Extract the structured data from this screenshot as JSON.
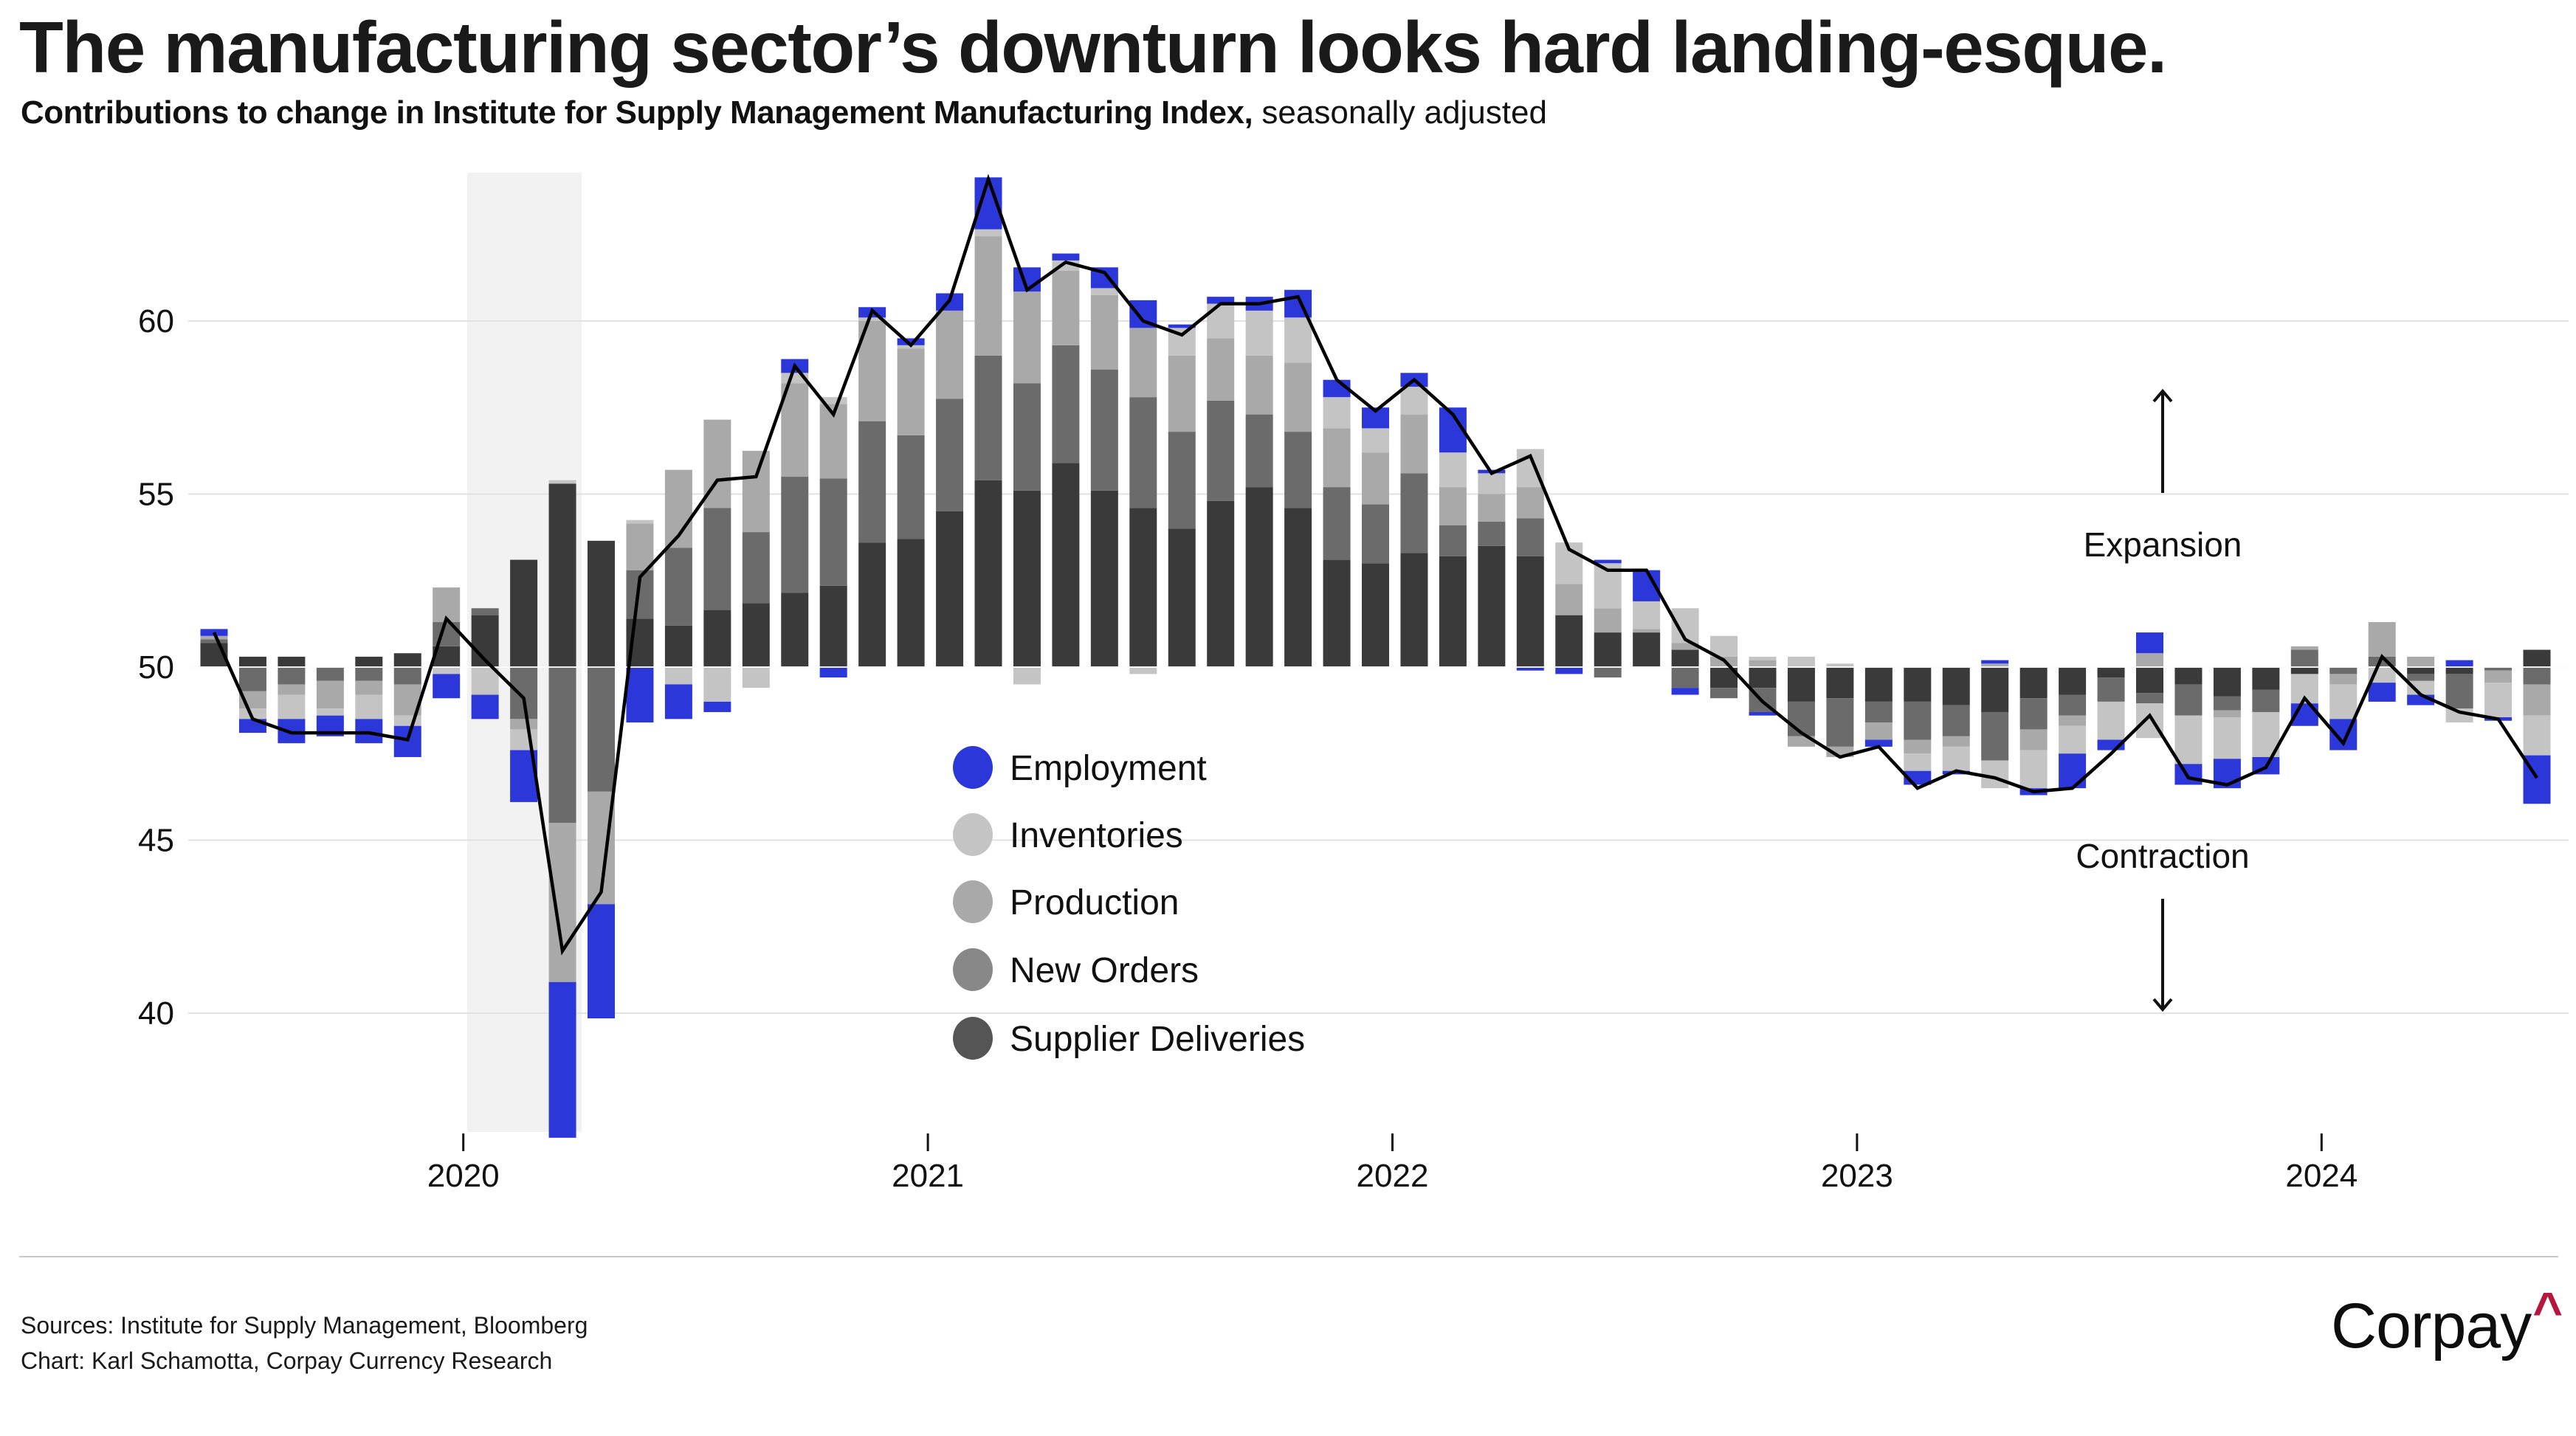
{
  "header": {
    "title": "The manufacturing sector’s downturn looks hard landing-esque.",
    "subtitle_main": "Contributions to change in Institute for Supply Management Manufacturing Index,",
    "subtitle_note": " seasonally adjusted"
  },
  "footer": {
    "sources": "Sources: Institute for Supply Management, Bloomberg",
    "credit": "Chart: Karl Schamotta, Corpay Currency Research",
    "logo_text": "Corpay",
    "logo_mark": "^",
    "logo_mark_color": "#b5173f"
  },
  "chart_data": {
    "type": "bar",
    "subtype": "stacked-bar-with-line",
    "title": "The manufacturing sector’s downturn looks hard landing-esque.",
    "subtitle": "Contributions to change in Institute for Supply Management Manufacturing Index, seasonally adjusted",
    "xlabel": "",
    "ylabel": "",
    "baseline": 50,
    "ylim": [
      36.5,
      65
    ],
    "yticks": [
      40,
      45,
      50,
      55,
      60
    ],
    "xticks": [
      {
        "label": "2020",
        "month_index": 6
      },
      {
        "label": "2021",
        "month_index": 18
      },
      {
        "label": "2022",
        "month_index": 30
      },
      {
        "label": "2023",
        "month_index": 42
      },
      {
        "label": "2024",
        "month_index": 54
      }
    ],
    "grid": true,
    "legend_position": "center-left",
    "shaded_period": {
      "label": "recession",
      "start": "2020-02",
      "end": "2020-04"
    },
    "annotations": [
      {
        "text": "Expansion",
        "direction": "up"
      },
      {
        "text": "Contraction",
        "direction": "down"
      }
    ],
    "categories": [
      "2019-07",
      "2019-08",
      "2019-09",
      "2019-10",
      "2019-11",
      "2019-12",
      "2020-01",
      "2020-02",
      "2020-03",
      "2020-04",
      "2020-05",
      "2020-06",
      "2020-07",
      "2020-08",
      "2020-09",
      "2020-10",
      "2020-11",
      "2020-12",
      "2021-01",
      "2021-02",
      "2021-03",
      "2021-04",
      "2021-05",
      "2021-06",
      "2021-07",
      "2021-08",
      "2021-09",
      "2021-10",
      "2021-11",
      "2021-12",
      "2022-01",
      "2022-02",
      "2022-03",
      "2022-04",
      "2022-05",
      "2022-06",
      "2022-07",
      "2022-08",
      "2022-09",
      "2022-10",
      "2022-11",
      "2022-12",
      "2023-01",
      "2023-02",
      "2023-03",
      "2023-04",
      "2023-05",
      "2023-06",
      "2023-07",
      "2023-08",
      "2023-09",
      "2023-10",
      "2023-11",
      "2023-12",
      "2024-01",
      "2024-02",
      "2024-03",
      "2024-04",
      "2024-05",
      "2024-06",
      "2024-07"
    ],
    "series": [
      {
        "name": "Supplier Deliveries",
        "color": "#3a3a3a",
        "legend_color": "#555555",
        "values": [
          0.7,
          0.3,
          0.3,
          0.0,
          0.3,
          0.4,
          0.6,
          1.5,
          3.1,
          5.3,
          3.65,
          1.4,
          1.2,
          1.65,
          1.85,
          2.15,
          2.35,
          3.6,
          3.7,
          4.5,
          5.4,
          5.1,
          5.9,
          5.1,
          4.6,
          4.0,
          4.8,
          5.2,
          4.6,
          3.1,
          3.0,
          3.3,
          3.2,
          3.5,
          3.2,
          1.5,
          1.0,
          1.0,
          0.5,
          -0.6,
          -0.6,
          -1.0,
          -0.9,
          -1.0,
          -1.0,
          -1.1,
          -1.3,
          -0.9,
          -0.8,
          -0.3,
          -0.75,
          -0.5,
          -0.85,
          -0.65,
          -0.2,
          0.0,
          0.0,
          -0.2,
          -0.2,
          0.0,
          0.5
        ]
      },
      {
        "name": "New Orders",
        "color": "#6b6b6b",
        "legend_color": "#888888",
        "values": [
          0.1,
          -0.7,
          -0.5,
          -0.4,
          -0.4,
          -0.5,
          0.7,
          0.2,
          -1.5,
          -4.5,
          -3.6,
          1.4,
          2.25,
          2.95,
          2.05,
          3.35,
          3.1,
          3.5,
          3.0,
          3.25,
          3.6,
          3.1,
          3.4,
          3.5,
          3.2,
          2.8,
          2.9,
          2.1,
          2.2,
          2.1,
          1.7,
          2.3,
          0.9,
          0.7,
          1.1,
          0.0,
          -0.3,
          0.0,
          -0.6,
          -0.3,
          -0.7,
          -1.0,
          -1.4,
          -0.6,
          -1.1,
          -0.9,
          -1.4,
          -0.9,
          -0.6,
          -0.7,
          -0.3,
          -0.9,
          -0.4,
          -0.65,
          0.5,
          -0.2,
          0.3,
          -0.2,
          -1.0,
          -0.1,
          -0.5
        ]
      },
      {
        "name": "Production",
        "color": "#a9a9a9",
        "legend_color": "#a9a9a9",
        "values": [
          0.1,
          -0.5,
          -0.3,
          -0.8,
          -0.4,
          -0.9,
          1.0,
          0.0,
          -0.3,
          -4.6,
          -3.25,
          1.35,
          2.25,
          2.55,
          2.35,
          2.7,
          2.15,
          2.9,
          2.5,
          2.55,
          3.45,
          2.65,
          2.15,
          2.15,
          2.0,
          2.2,
          1.8,
          1.7,
          2.0,
          1.7,
          1.5,
          1.7,
          1.1,
          0.8,
          0.9,
          0.9,
          0.7,
          0.1,
          0.2,
          0.3,
          0.2,
          -0.3,
          -0.3,
          -0.5,
          -0.4,
          -0.3,
          0.1,
          -0.6,
          -0.3,
          0.0,
          0.4,
          0.0,
          -0.2,
          0.0,
          0.1,
          -0.3,
          1.0,
          0.3,
          0.0,
          -0.35,
          -0.9
        ]
      },
      {
        "name": "Inventories",
        "color": "#c4c4c4",
        "legend_color": "#c4c4c4",
        "values": [
          0.0,
          -0.3,
          -0.7,
          -0.2,
          -0.7,
          -0.3,
          -0.2,
          -0.8,
          -0.6,
          0.1,
          0.0,
          0.1,
          -0.5,
          -1.0,
          -0.6,
          0.3,
          0.2,
          0.1,
          0.1,
          0.0,
          0.2,
          -0.5,
          0.3,
          0.2,
          -0.2,
          0.8,
          1.0,
          1.3,
          1.3,
          0.9,
          0.7,
          0.8,
          1.0,
          0.6,
          1.1,
          1.2,
          1.3,
          0.8,
          1.0,
          0.6,
          0.1,
          0.3,
          0.1,
          0.0,
          -0.5,
          -0.7,
          -0.8,
          -1.1,
          -0.8,
          -1.1,
          -1.0,
          -1.4,
          -1.2,
          -1.3,
          -0.85,
          -1.0,
          -0.45,
          -0.4,
          -0.4,
          -1.0,
          -1.15
        ]
      },
      {
        "name": "Employment",
        "color": "#2b37d9",
        "legend_color": "#2b37d9",
        "values": [
          0.2,
          -0.4,
          -0.7,
          -0.6,
          -0.7,
          -0.9,
          -0.7,
          -0.7,
          -1.5,
          -4.5,
          -3.3,
          -1.6,
          -1.0,
          -0.3,
          0.0,
          0.4,
          -0.3,
          0.3,
          0.2,
          0.5,
          1.5,
          0.7,
          0.2,
          0.6,
          0.8,
          0.1,
          0.2,
          0.4,
          0.8,
          0.5,
          0.6,
          0.4,
          1.3,
          0.1,
          -0.1,
          -0.2,
          0.1,
          0.9,
          -0.2,
          0.0,
          -0.1,
          0.0,
          0.0,
          -0.2,
          -0.4,
          -0.1,
          0.1,
          -0.2,
          -1.0,
          -0.3,
          0.6,
          -0.6,
          -0.85,
          -0.5,
          -0.65,
          -0.9,
          -0.55,
          -0.3,
          0.2,
          -0.1,
          -1.4
        ]
      }
    ],
    "line": {
      "name": "ISM Manufacturing Index",
      "color": "#000000",
      "values": [
        51.0,
        48.5,
        48.1,
        48.1,
        48.1,
        47.9,
        51.4,
        50.2,
        49.1,
        41.8,
        43.5,
        52.6,
        53.8,
        55.4,
        55.5,
        58.7,
        57.3,
        60.3,
        59.3,
        60.6,
        64.1,
        60.9,
        61.7,
        61.4,
        60.0,
        59.6,
        60.5,
        60.5,
        60.7,
        58.3,
        57.4,
        58.3,
        57.3,
        55.6,
        56.1,
        53.4,
        52.8,
        52.8,
        50.8,
        50.2,
        49.0,
        48.1,
        47.4,
        47.7,
        46.5,
        47.0,
        46.8,
        46.4,
        46.5,
        47.5,
        48.6,
        46.8,
        46.6,
        47.1,
        49.1,
        47.8,
        50.3,
        49.2,
        48.7,
        48.5,
        46.8
      ]
    },
    "legend": [
      {
        "label": "Employment",
        "series_index": 4
      },
      {
        "label": "Inventories",
        "series_index": 3
      },
      {
        "label": "Production",
        "series_index": 2
      },
      {
        "label": "New Orders",
        "series_index": 1
      },
      {
        "label": "Supplier Deliveries",
        "series_index": 0
      }
    ]
  }
}
